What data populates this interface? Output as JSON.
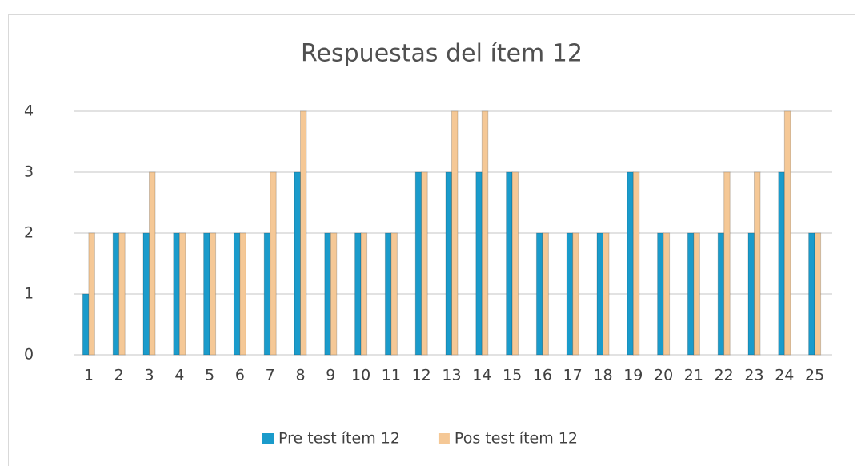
{
  "chart_data": {
    "type": "bar",
    "title": "Respuestas del ítem 12",
    "categories": [
      "1",
      "2",
      "3",
      "4",
      "5",
      "6",
      "7",
      "8",
      "9",
      "10",
      "11",
      "12",
      "13",
      "14",
      "15",
      "16",
      "17",
      "18",
      "19",
      "20",
      "21",
      "22",
      "23",
      "24",
      "25"
    ],
    "series": [
      {
        "name": "Pre test ítem 12",
        "color": "#1a9bcb",
        "values": [
          1,
          2,
          2,
          2,
          2,
          2,
          2,
          3,
          2,
          2,
          2,
          3,
          3,
          3,
          3,
          2,
          2,
          2,
          3,
          2,
          2,
          2,
          2,
          3,
          2
        ]
      },
      {
        "name": "Pos test ítem 12",
        "color": "#f5c896",
        "values": [
          2,
          2,
          3,
          2,
          2,
          2,
          3,
          4,
          2,
          2,
          2,
          3,
          4,
          4,
          3,
          2,
          2,
          2,
          3,
          2,
          2,
          3,
          3,
          4,
          2
        ]
      }
    ],
    "ylim": [
      0,
      4
    ],
    "yticks": [
      0,
      1,
      2,
      3,
      4
    ],
    "grid": true,
    "legend": "bottom"
  }
}
